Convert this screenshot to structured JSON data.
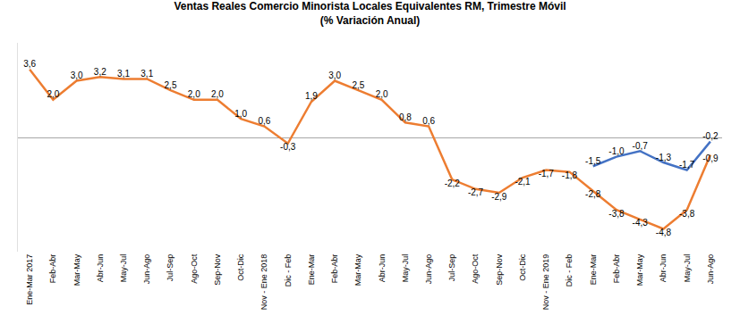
{
  "chart_data": {
    "type": "line",
    "title": "Ventas Reales Comercio Minorista Locales Equivalentes RM, Trimestre Móvil",
    "subtitle": "(% Variación Anual)",
    "categories": [
      "Ene-Mar 2017",
      "Feb-Abr",
      "Mar-May",
      "Abr-Jun",
      "May-Jul",
      "Jun-Ago",
      "Jul-Sep",
      "Ago-Oct",
      "Sep-Nov",
      "Oct-Dic",
      "Nov - Ene 2018",
      "Dic - Feb",
      "Ene-Mar",
      "Feb-Abr",
      "Mar-May",
      "Abr-Jun",
      "May-Jul",
      "Jun-Ago",
      "Jul-Sep",
      "Ago-Oct",
      "Sep-Nov",
      "Oct-Dic",
      "Nov - Ene 2019",
      "Dic - Feb",
      "Ene-Mar",
      "Feb-Abr",
      "Mar-May",
      "Abr-Jun",
      "May-Jul",
      "Jun-Ago"
    ],
    "series": [
      {
        "color": "#ED7D31",
        "values": [
          3.6,
          2.0,
          3.0,
          3.2,
          3.1,
          3.1,
          2.5,
          2.0,
          2.0,
          1.0,
          0.6,
          -0.3,
          1.9,
          3.0,
          2.5,
          2.0,
          0.8,
          0.6,
          -2.2,
          -2.7,
          -2.9,
          -2.1,
          -1.7,
          -1.8,
          -2.8,
          -3.8,
          -4.3,
          -4.8,
          -3.8,
          -0.9
        ],
        "value_labels": [
          "3,6",
          "2,0",
          "3,0",
          "3,2",
          "3,1",
          "3,1",
          "2,5",
          "2,0",
          "2,0",
          "1,0",
          "0,6",
          "-0,3",
          "1,9",
          "3,0",
          "2,5",
          "2,0",
          "0,8",
          "0,6",
          "-2,2",
          "-2,7",
          "-2,9",
          "-2,1",
          "-1,7",
          "-1,8",
          "-2,8",
          "-3,8",
          "-4,3",
          "-4,8",
          "-3,8",
          "-0,9"
        ]
      },
      {
        "color": "#4472C4",
        "values": [
          null,
          null,
          null,
          null,
          null,
          null,
          null,
          null,
          null,
          null,
          null,
          null,
          null,
          null,
          null,
          null,
          null,
          null,
          null,
          null,
          null,
          null,
          null,
          null,
          -1.5,
          -1.0,
          -0.7,
          -1.3,
          -1.7,
          -0.2
        ],
        "value_labels": [
          null,
          null,
          null,
          null,
          null,
          null,
          null,
          null,
          null,
          null,
          null,
          null,
          null,
          null,
          null,
          null,
          null,
          null,
          null,
          null,
          null,
          null,
          null,
          null,
          "-1,5",
          "-1,0",
          "-0,7",
          "-1,3",
          "-1,7",
          "-0,2"
        ]
      }
    ],
    "ylim": [
      -6,
      5
    ],
    "grid": false,
    "data_labels": true,
    "tick_labels": "x"
  }
}
